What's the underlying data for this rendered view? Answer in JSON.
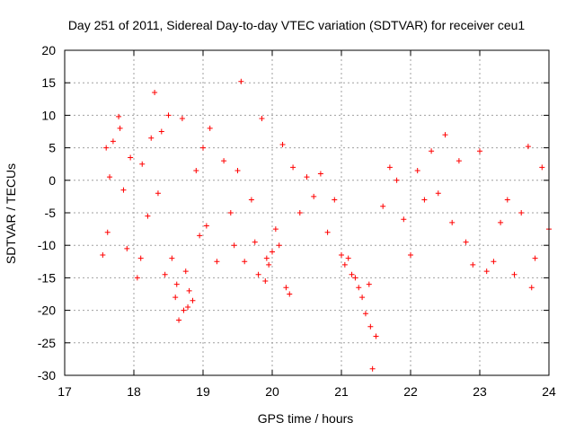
{
  "chart_data": {
    "type": "scatter",
    "title": "Day 251 of 2011, Sidereal Day-to-day VTEC variation (SDTVAR) for receiver ceu1",
    "xlabel": "GPS time / hours",
    "ylabel": "SDTVAR / TECUs",
    "xlim": [
      17,
      24
    ],
    "ylim": [
      -30,
      20
    ],
    "xticks": [
      17,
      18,
      19,
      20,
      21,
      22,
      23,
      24
    ],
    "yticks": [
      -30,
      -25,
      -20,
      -15,
      -10,
      -5,
      0,
      5,
      10,
      15,
      20
    ],
    "grid": true,
    "marker": "+",
    "color": "#ff0000",
    "series": [
      {
        "name": "SDTVAR",
        "x": [
          17.55,
          17.6,
          17.62,
          17.65,
          17.7,
          17.78,
          17.8,
          17.85,
          17.9,
          17.95,
          18.05,
          18.1,
          18.12,
          18.2,
          18.25,
          18.3,
          18.35,
          18.4,
          18.45,
          18.5,
          18.55,
          18.6,
          18.62,
          18.65,
          18.7,
          18.72,
          18.75,
          18.78,
          18.8,
          18.85,
          18.9,
          18.95,
          19.0,
          19.05,
          19.1,
          19.2,
          19.3,
          19.4,
          19.45,
          19.5,
          19.55,
          19.6,
          19.7,
          19.75,
          19.8,
          19.85,
          19.9,
          19.92,
          19.95,
          20.0,
          20.05,
          20.1,
          20.15,
          20.2,
          20.25,
          20.3,
          20.4,
          20.5,
          20.6,
          20.7,
          20.8,
          20.9,
          21.0,
          21.05,
          21.1,
          21.15,
          21.2,
          21.25,
          21.3,
          21.35,
          21.4,
          21.42,
          21.45,
          21.5,
          21.6,
          21.7,
          21.8,
          21.9,
          22.0,
          22.1,
          22.2,
          22.3,
          22.4,
          22.5,
          22.6,
          22.7,
          22.8,
          22.9,
          23.0,
          23.1,
          23.2,
          23.3,
          23.4,
          23.5,
          23.6,
          23.7,
          23.75,
          23.8,
          23.9,
          24.0
        ],
        "y": [
          -11.5,
          5.0,
          -8.0,
          0.5,
          6.0,
          9.8,
          8.0,
          -1.5,
          -10.5,
          3.5,
          -15.0,
          -12.0,
          2.5,
          -5.5,
          6.5,
          13.5,
          -2.0,
          7.5,
          -14.5,
          10.0,
          -12.0,
          -18.0,
          -16.0,
          -21.5,
          9.5,
          -20.0,
          -14.0,
          -19.5,
          -17.0,
          -18.5,
          1.5,
          -8.5,
          5.0,
          -7.0,
          8.0,
          -12.5,
          3.0,
          -5.0,
          -10.0,
          1.5,
          15.2,
          -12.5,
          -3.0,
          -9.5,
          -14.5,
          9.5,
          -15.5,
          -12.0,
          -13.0,
          -11.0,
          -7.5,
          -10.0,
          5.5,
          -16.5,
          -17.5,
          2.0,
          -5.0,
          0.5,
          -2.5,
          1.0,
          -8.0,
          -3.0,
          -11.5,
          -13.0,
          -12.0,
          -14.5,
          -15.0,
          -16.5,
          -18.0,
          -20.5,
          -16.0,
          -22.5,
          -29.0,
          -24.0,
          -4.0,
          2.0,
          0.0,
          -6.0,
          -11.5,
          1.5,
          -3.0,
          4.5,
          -2.0,
          7.0,
          -6.5,
          3.0,
          -9.5,
          -13.0,
          4.5,
          -14.0,
          -12.5,
          -6.5,
          -3.0,
          -14.5,
          -5.0,
          5.2,
          -16.5,
          -12.0,
          2.0,
          -7.5
        ]
      }
    ]
  }
}
